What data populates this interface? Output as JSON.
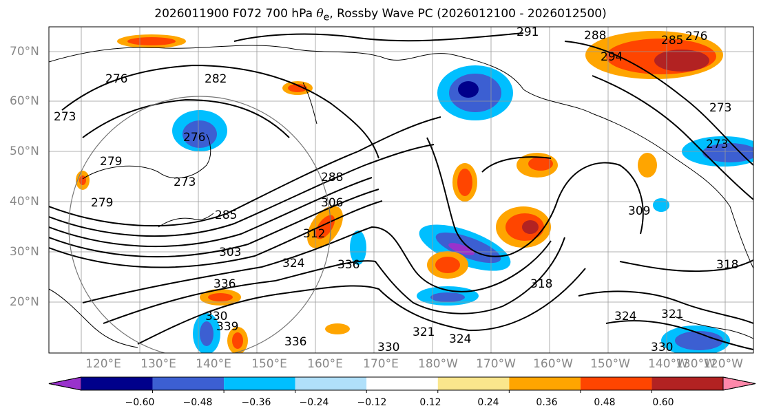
{
  "title": {
    "prefix": "2026011900 F072 700 hPa ",
    "symbol": "θ",
    "subscript": "e",
    "suffix": ", Rossby Wave PC (2026012100 - 2026012500)"
  },
  "lat_labels": [
    "70°N",
    "60°N",
    "50°N",
    "40°N",
    "30°N",
    "20°N"
  ],
  "lon_labels": [
    "120°E",
    "130°E",
    "140°E",
    "150°E",
    "160°E",
    "170°E",
    "180°W",
    "170°W",
    "160°W",
    "150°W",
    "140°W",
    "130°W",
    "120°W"
  ],
  "contour_labels": [
    "291",
    "288",
    "285",
    "276",
    "294",
    "276",
    "282",
    "273",
    "279",
    "276",
    "273",
    "279",
    "288",
    "306",
    "285",
    "303",
    "312",
    "336",
    "324",
    "330",
    "336",
    "339",
    "336",
    "321",
    "324",
    "318",
    "309",
    "324",
    "321",
    "330",
    "318",
    "273",
    "273"
  ],
  "colorbar": {
    "ticks": [
      "−0.60",
      "−0.48",
      "−0.36",
      "−0.24",
      "−0.12",
      "0.12",
      "0.24",
      "0.36",
      "0.48",
      "0.60"
    ],
    "colors": [
      "#9932cc",
      "#00008b",
      "#3c5fd2",
      "#00bfff",
      "#b0e0fa",
      "#ffffff",
      "#fae68c",
      "#ffa500",
      "#ff4500",
      "#b22222",
      "#ff88aa"
    ]
  }
}
